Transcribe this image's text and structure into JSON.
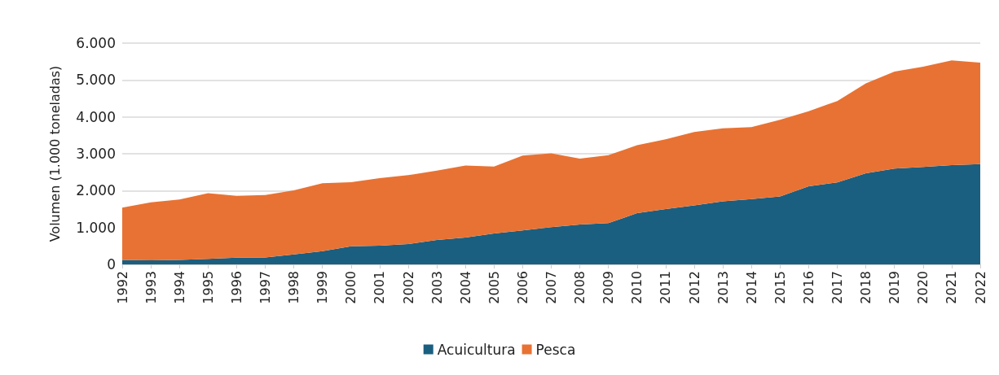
{
  "chart_data": {
    "type": "area",
    "stacked": true,
    "ylabel": "Volumen (1.000 toneladas)",
    "categories": [
      "1992",
      "1993",
      "1994",
      "1995",
      "1996",
      "1997",
      "1998",
      "1999",
      "2000",
      "2001",
      "2002",
      "2003",
      "2004",
      "2005",
      "2006",
      "2007",
      "2008",
      "2009",
      "2010",
      "2011",
      "2012",
      "2013",
      "2014",
      "2015",
      "2016",
      "2017",
      "2018",
      "2019",
      "2020",
      "2021",
      "2022"
    ],
    "series": [
      {
        "name": "Acuicultura",
        "color": "#1a5f80",
        "values": [
          120,
          110,
          120,
          150,
          180,
          190,
          270,
          360,
          490,
          510,
          550,
          660,
          730,
          840,
          920,
          1010,
          1080,
          1120,
          1390,
          1500,
          1600,
          1710,
          1770,
          1840,
          2120,
          2220,
          2470,
          2600,
          2640,
          2690,
          2720
        ]
      },
      {
        "name": "Pesca",
        "color": "#e87233",
        "values": [
          1420,
          1570,
          1640,
          1780,
          1680,
          1690,
          1740,
          1840,
          1740,
          1830,
          1870,
          1880,
          1950,
          1810,
          2030,
          2000,
          1790,
          1840,
          1840,
          1890,
          1990,
          1980,
          1950,
          2080,
          2030,
          2210,
          2440,
          2630,
          2720,
          2840,
          2750
        ]
      }
    ],
    "ylim": [
      0,
      6000
    ],
    "yticks": [
      0,
      {
        "value": 1000,
        "label": "1.000"
      },
      {
        "value": 2000,
        "label": "2.000"
      },
      {
        "value": 3000,
        "label": "3.000"
      },
      {
        "value": 4000,
        "label": "4.000"
      },
      {
        "value": 5000,
        "label": "5.000"
      },
      {
        "value": 6000,
        "label": "6.000"
      }
    ],
    "grid": "y",
    "legend": "bottom"
  }
}
